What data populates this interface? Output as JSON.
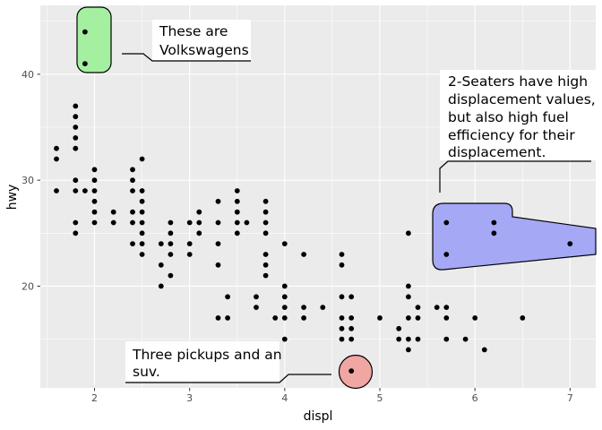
{
  "chart_data": {
    "type": "scatter",
    "xlabel": "displ",
    "ylabel": "hwy",
    "xlim": [
      1.43,
      7.27
    ],
    "ylim": [
      10.4,
      46.5
    ],
    "x_ticks": [
      2,
      3,
      4,
      5,
      6,
      7
    ],
    "y_ticks": [
      20,
      30,
      40
    ],
    "x_tick_labels": [
      "2",
      "3",
      "4",
      "5",
      "6",
      "7"
    ],
    "y_tick_labels": [
      "20",
      "30",
      "40"
    ],
    "grid": true,
    "points": [
      [
        1.6,
        33
      ],
      [
        1.6,
        32
      ],
      [
        1.6,
        29
      ],
      [
        1.8,
        37
      ],
      [
        1.8,
        36
      ],
      [
        1.8,
        35
      ],
      [
        1.8,
        34
      ],
      [
        1.8,
        33
      ],
      [
        1.8,
        30
      ],
      [
        1.8,
        29
      ],
      [
        1.8,
        26
      ],
      [
        1.8,
        25
      ],
      [
        1.9,
        44
      ],
      [
        1.9,
        41
      ],
      [
        1.9,
        29
      ],
      [
        2.0,
        31
      ],
      [
        2.0,
        30
      ],
      [
        2.0,
        29
      ],
      [
        2.0,
        28
      ],
      [
        2.0,
        27
      ],
      [
        2.0,
        26
      ],
      [
        2.2,
        27
      ],
      [
        2.2,
        26
      ],
      [
        2.4,
        31
      ],
      [
        2.4,
        30
      ],
      [
        2.4,
        29
      ],
      [
        2.4,
        27
      ],
      [
        2.4,
        26
      ],
      [
        2.4,
        24
      ],
      [
        2.5,
        32
      ],
      [
        2.5,
        29
      ],
      [
        2.5,
        28
      ],
      [
        2.5,
        27
      ],
      [
        2.5,
        26
      ],
      [
        2.5,
        25
      ],
      [
        2.5,
        24
      ],
      [
        2.5,
        23
      ],
      [
        2.7,
        24
      ],
      [
        2.7,
        22
      ],
      [
        2.7,
        20
      ],
      [
        2.8,
        26
      ],
      [
        2.8,
        25
      ],
      [
        2.8,
        24
      ],
      [
        2.8,
        23
      ],
      [
        2.8,
        21
      ],
      [
        3.0,
        26
      ],
      [
        3.0,
        24
      ],
      [
        3.0,
        23
      ],
      [
        3.1,
        27
      ],
      [
        3.1,
        26
      ],
      [
        3.1,
        25
      ],
      [
        3.3,
        28
      ],
      [
        3.3,
        26
      ],
      [
        3.3,
        24
      ],
      [
        3.3,
        22
      ],
      [
        3.3,
        17
      ],
      [
        3.4,
        19
      ],
      [
        3.4,
        17
      ],
      [
        3.5,
        29
      ],
      [
        3.5,
        28
      ],
      [
        3.5,
        27
      ],
      [
        3.5,
        26
      ],
      [
        3.5,
        25
      ],
      [
        3.6,
        26
      ],
      [
        3.7,
        19
      ],
      [
        3.7,
        18
      ],
      [
        3.8,
        28
      ],
      [
        3.8,
        27
      ],
      [
        3.8,
        26
      ],
      [
        3.8,
        25
      ],
      [
        3.8,
        23
      ],
      [
        3.8,
        22
      ],
      [
        3.8,
        21
      ],
      [
        3.9,
        17
      ],
      [
        4.0,
        24
      ],
      [
        4.0,
        20
      ],
      [
        4.0,
        19
      ],
      [
        4.0,
        18
      ],
      [
        4.0,
        17
      ],
      [
        4.0,
        15
      ],
      [
        4.2,
        23
      ],
      [
        4.2,
        18
      ],
      [
        4.2,
        17
      ],
      [
        4.4,
        18
      ],
      [
        4.6,
        23
      ],
      [
        4.6,
        22
      ],
      [
        4.6,
        19
      ],
      [
        4.6,
        17
      ],
      [
        4.6,
        16
      ],
      [
        4.6,
        15
      ],
      [
        4.7,
        19
      ],
      [
        4.7,
        17
      ],
      [
        4.7,
        16
      ],
      [
        4.7,
        15
      ],
      [
        4.7,
        12
      ],
      [
        5.0,
        17
      ],
      [
        5.2,
        16
      ],
      [
        5.2,
        15
      ],
      [
        5.3,
        25
      ],
      [
        5.3,
        20
      ],
      [
        5.3,
        19
      ],
      [
        5.3,
        17
      ],
      [
        5.3,
        15
      ],
      [
        5.3,
        14
      ],
      [
        5.4,
        18
      ],
      [
        5.4,
        17
      ],
      [
        5.4,
        15
      ],
      [
        5.6,
        18
      ],
      [
        5.7,
        26
      ],
      [
        5.7,
        23
      ],
      [
        5.7,
        18
      ],
      [
        5.7,
        17
      ],
      [
        5.7,
        15
      ],
      [
        5.9,
        15
      ],
      [
        6.0,
        17
      ],
      [
        6.1,
        14
      ],
      [
        6.2,
        26
      ],
      [
        6.2,
        25
      ],
      [
        6.5,
        17
      ],
      [
        7.0,
        24
      ]
    ],
    "annotations": [
      {
        "id": "vw",
        "text_lines": [
          "These are",
          "Volkswagens"
        ],
        "highlight_color": "#a5f0a0",
        "highlight_points": [
          [
            1.9,
            44
          ],
          [
            1.9,
            41
          ]
        ]
      },
      {
        "id": "seaters",
        "text_lines": [
          "2-Seaters have high",
          "displacement values,",
          "but also high fuel",
          "efficiency for their",
          "displacement."
        ],
        "highlight_color": "#a5a8f5",
        "highlight_points": [
          [
            5.7,
            26
          ],
          [
            5.7,
            23
          ],
          [
            6.2,
            26
          ],
          [
            6.2,
            25
          ],
          [
            7.0,
            24
          ]
        ]
      },
      {
        "id": "pickups",
        "text_lines": [
          "Three pickups and an",
          "suv."
        ],
        "highlight_color": "#f0a6a3",
        "highlight_points": [
          [
            4.7,
            12
          ]
        ]
      }
    ]
  },
  "colors": {
    "panel_bg": "#ebebeb",
    "grid_major": "#ffffff",
    "point": "#000000",
    "vw_fill": "#a5f0a0",
    "seater_fill": "#a5a8f5",
    "pickup_fill": "#f0a6a3"
  }
}
